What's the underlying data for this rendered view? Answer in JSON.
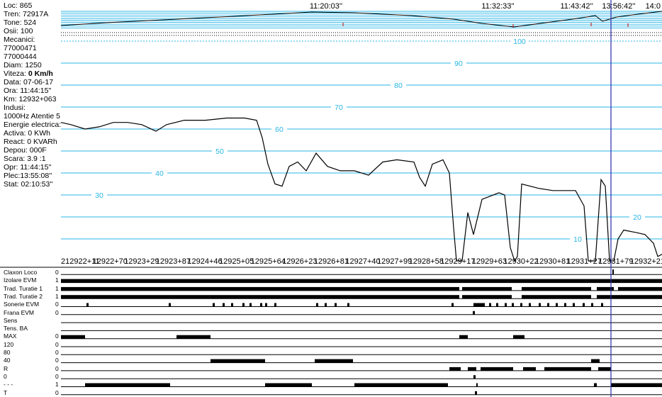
{
  "info": {
    "loc": "Loc: 865",
    "tren": "Tren: 72917A",
    "tone": "Tone: 524",
    "osii": "Osii: 100",
    "mecanici": "Mecanici:",
    "mec1": "77000471",
    "mec2": "77000444",
    "diam": "Diam: 1250",
    "viteza_label": "Viteza: ",
    "viteza_value": "0 Km/h",
    "data": "Data: 07-06-17",
    "ora": "Ora: 11:44:15''",
    "km": "Km: 12932+063",
    "indusi": "Indusi:",
    "indusi_val": "1000Hz Atentie 5",
    "energie": "Energie electrica:",
    "activa": "Activa: 0 KWh",
    "react": "React: 0 KVARh",
    "depou": "Depou: 000F",
    "scara": "Scara: 3.9 :1",
    "opr": "Opr:  11:44:15''",
    "plec": "Plec:13:55:08''",
    "stat": "Stat:  02:10:53''"
  },
  "time_labels": [
    {
      "text": "11:20:03''",
      "x": 0.441
    },
    {
      "text": "11:32:33''",
      "x": 0.727
    },
    {
      "text": "11:43:42''",
      "x": 0.858
    },
    {
      "text": "13:56:42''",
      "x": 0.928
    },
    {
      "text": "14:0",
      "x": 0.985
    }
  ],
  "speed_levels": [
    10,
    20,
    30,
    40,
    50,
    60,
    70,
    80,
    90,
    100
  ],
  "km_labels": [
    "212922+11",
    "12922+70",
    "12923+29",
    "12923+87",
    "12924+46",
    "12925+05",
    "12925+64",
    "12926+23",
    "12926+81",
    "12927+40",
    "12927+99",
    "12928+58",
    "12929+17",
    "12929+63",
    "12930+22",
    "12930+81",
    "12931+27",
    "12931+79",
    "12932+21",
    "12"
  ],
  "channels": [
    {
      "name": "Claxon Loco",
      "value": "0"
    },
    {
      "name": "Izolare EVM",
      "value": "1"
    },
    {
      "name": "Trad. Turatie 1",
      "value": "1"
    },
    {
      "name": "Trad. Turatie 2",
      "value": "1"
    },
    {
      "name": "Sonerie EVM",
      "value": "0"
    },
    {
      "name": "Frana EVM",
      "value": "0"
    },
    {
      "name": "Sens",
      "value": ""
    },
    {
      "name": "Tens. BA",
      "value": ""
    },
    {
      "name": "MAX",
      "value": "0"
    },
    {
      "name": "120",
      "value": "0"
    },
    {
      "name": "80",
      "value": "0"
    },
    {
      "name": "40",
      "value": "0"
    },
    {
      "name": "R",
      "value": "0"
    },
    {
      "name": "0",
      "value": "0"
    },
    {
      "name": "- - -",
      "value": "1"
    },
    {
      "name": "T",
      "value": "0"
    }
  ],
  "colors": {
    "grid": "#29b6e6",
    "cursor": "#2a2aa8",
    "line": "#000000",
    "bar": "#000000"
  }
}
